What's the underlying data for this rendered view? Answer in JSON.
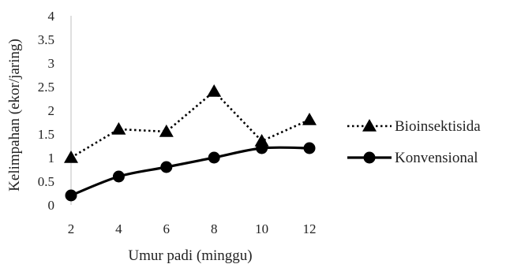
{
  "chart_data": {
    "type": "line",
    "title": "",
    "xlabel": "Umur padi (minggu)",
    "ylabel": "Kelimpahan (ekor/jaring)",
    "x": [
      2,
      4,
      6,
      8,
      10,
      12
    ],
    "x_ticks": [
      "2",
      "4",
      "6",
      "8",
      "10",
      "12"
    ],
    "y_ticks": [
      "0",
      "0.5",
      "1",
      "1.5",
      "2",
      "2.5",
      "3",
      "3.5",
      "4"
    ],
    "ylim": [
      0,
      4
    ],
    "grid": false,
    "legend_position": "right",
    "series": [
      {
        "name": "Bioinsektisida",
        "values": [
          1.0,
          1.6,
          1.55,
          2.4,
          1.35,
          1.8
        ],
        "marker": "triangle",
        "line_style": "dotted",
        "color": "#000000"
      },
      {
        "name": "Konvensional",
        "values": [
          0.2,
          0.6,
          0.8,
          1.0,
          1.2,
          1.2
        ],
        "marker": "circle",
        "line_style": "solid",
        "color": "#000000"
      }
    ]
  }
}
